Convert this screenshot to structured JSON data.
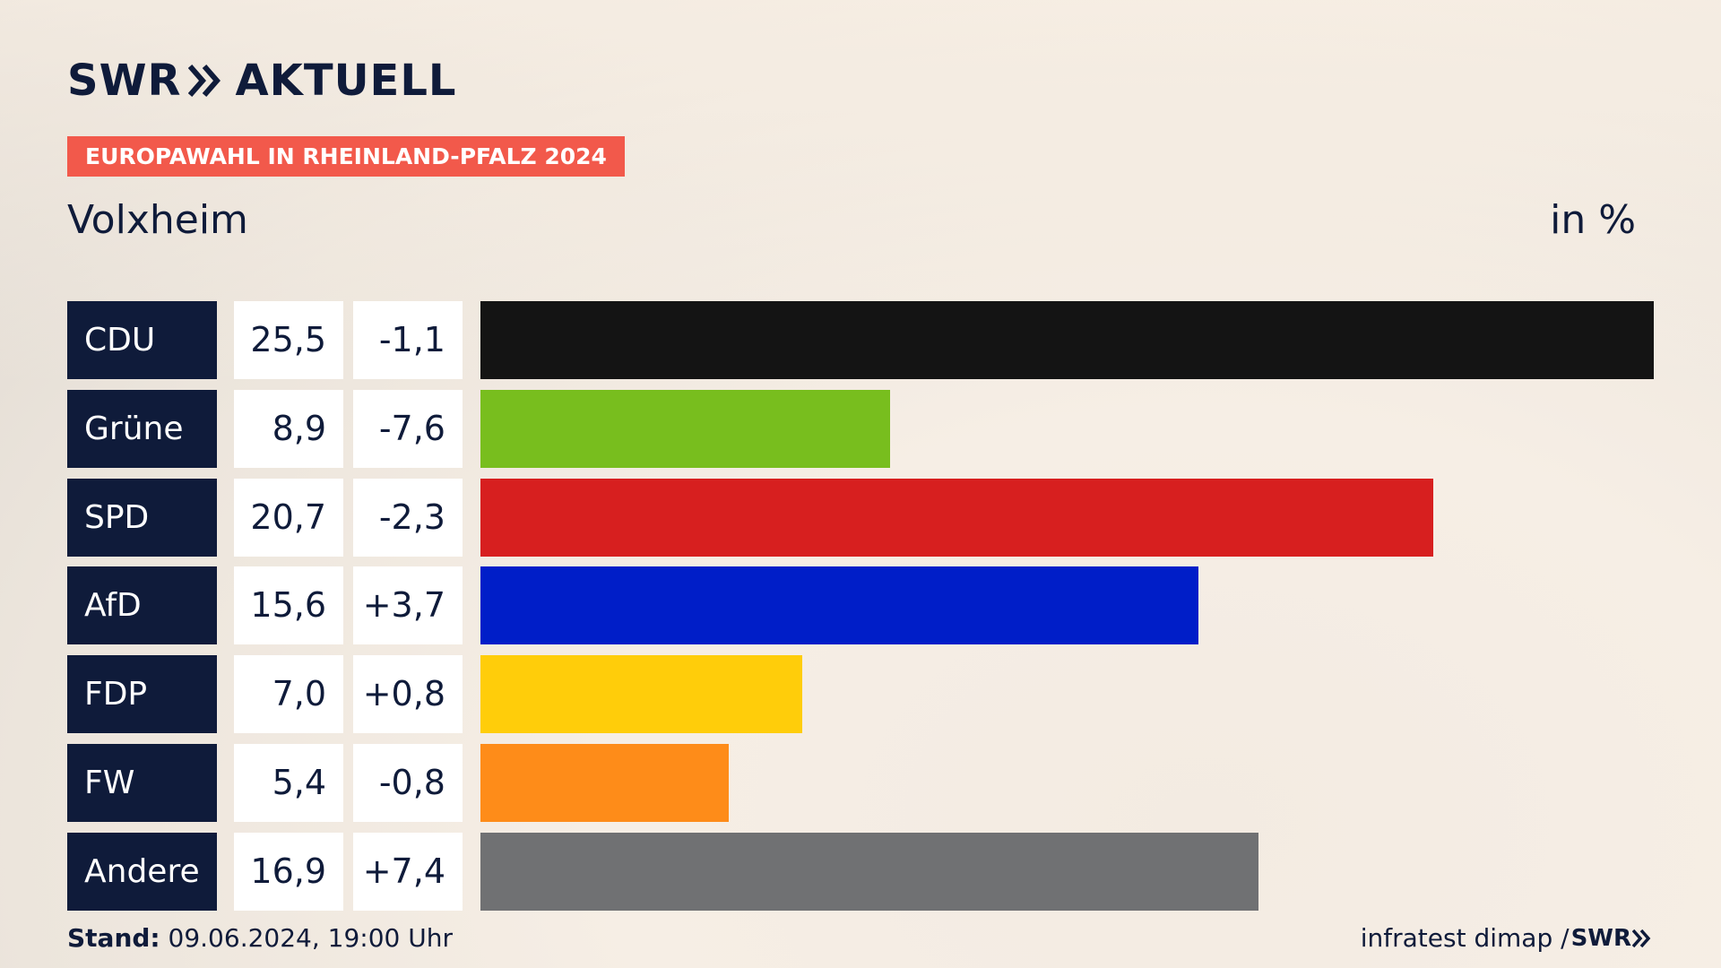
{
  "header": {
    "logo_left": "SWR",
    "logo_right": "AKTUELL",
    "badge": "EUROPAWAHL IN RHEINLAND-PFALZ 2024",
    "region": "Volxheim",
    "unit": "in %"
  },
  "colors": {
    "navy": "#0f1b3a",
    "badge": "#f2594b"
  },
  "chart_data": {
    "type": "bar",
    "orientation": "horizontal",
    "title": "EUROPAWAHL IN RHEINLAND-PFALZ 2024",
    "subtitle": "Volxheim",
    "unit": "in %",
    "xlim": [
      0,
      25.5
    ],
    "categories": [
      "CDU",
      "Grüne",
      "SPD",
      "AfD",
      "FDP",
      "FW",
      "Andere"
    ],
    "values": [
      25.5,
      8.9,
      20.7,
      15.6,
      7.0,
      5.4,
      16.9
    ],
    "rows": [
      {
        "party": "CDU",
        "value": 25.5,
        "value_label": "25,5",
        "diff_label": "-1,1",
        "color": "#141414"
      },
      {
        "party": "Grüne",
        "value": 8.9,
        "value_label": "8,9",
        "diff_label": "-7,6",
        "color": "#78be1e"
      },
      {
        "party": "SPD",
        "value": 20.7,
        "value_label": "20,7",
        "diff_label": "-2,3",
        "color": "#d71f1f"
      },
      {
        "party": "AfD",
        "value": 15.6,
        "value_label": "15,6",
        "diff_label": "+3,7",
        "color": "#001ec8"
      },
      {
        "party": "FDP",
        "value": 7.0,
        "value_label": "7,0",
        "diff_label": "+0,8",
        "color": "#ffcd0a"
      },
      {
        "party": "FW",
        "value": 5.4,
        "value_label": "5,4",
        "diff_label": "-0,8",
        "color": "#fe8c19"
      },
      {
        "party": "Andere",
        "value": 16.9,
        "value_label": "16,9",
        "diff_label": "+7,4",
        "color": "#707173"
      }
    ]
  },
  "footer": {
    "stand_label": "Stand:",
    "stand_value": "09.06.2024, 19:00 Uhr",
    "source": "infratest dimap /",
    "source_brand": "SWR"
  }
}
